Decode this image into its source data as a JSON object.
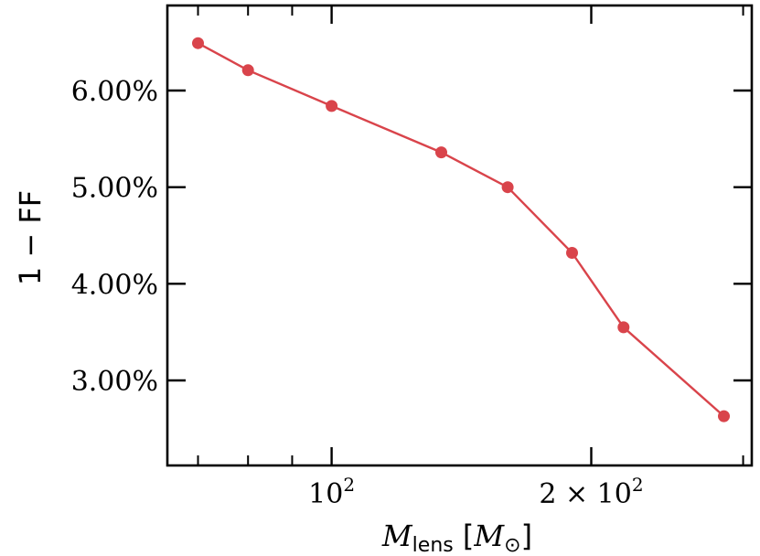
{
  "chart_data": {
    "type": "line",
    "title": "",
    "xlabel": "M_lens [M_⊙]",
    "xlabel_parts": {
      "main": "M",
      "sub": "lens",
      "bracket_open": "[",
      "unit_main": "M",
      "unit_sub": "⊙",
      "bracket_close": "]"
    },
    "ylabel": "1 − FF",
    "xscale": "log",
    "xlim": [
      64.5,
      307
    ],
    "ylim": [
      2.12,
      6.88
    ],
    "x_major_ticks": [
      {
        "value": 100,
        "base": "10",
        "exp": "2",
        "prefix": ""
      },
      {
        "value": 200,
        "base": "10",
        "exp": "2",
        "prefix": "2 × "
      }
    ],
    "x_minor_ticks": [
      70,
      80,
      90,
      300
    ],
    "y_ticks": [
      3.0,
      4.0,
      5.0,
      6.0
    ],
    "y_tick_labels": [
      "3.00%",
      "4.00%",
      "5.00%",
      "6.00%"
    ],
    "grid": false,
    "series": [
      {
        "color": "#d9444b",
        "x": [
          70,
          80,
          100,
          134,
          160,
          190,
          218,
          285
        ],
        "y": [
          6.49,
          6.21,
          5.84,
          5.36,
          5.0,
          4.32,
          3.55,
          2.63
        ]
      }
    ]
  }
}
